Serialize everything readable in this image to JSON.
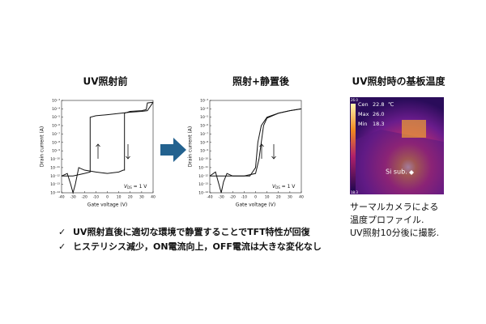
{
  "chart_data": [
    {
      "type": "line",
      "title": "UV照射前",
      "x_label": "Gate voltage (V)",
      "y_label": "Drain current (A)",
      "annotation": {
        "symbol": "V",
        "subscript": "DS",
        "text": " = 1 V"
      },
      "log_y": true,
      "color": "#111111",
      "xlim": [
        -40,
        40
      ],
      "xticks": [
        -40,
        -30,
        -20,
        -10,
        0,
        10,
        20,
        30,
        40
      ],
      "ylim": [
        1e-14,
        0.001
      ],
      "yticks": [
        {
          "value": 1e-14,
          "label": "10⁻¹⁴"
        },
        {
          "value": 1e-13,
          "label": "10⁻¹³"
        },
        {
          "value": 1e-12,
          "label": "10⁻¹²"
        },
        {
          "value": 1e-11,
          "label": "10⁻¹¹"
        },
        {
          "value": 1e-10,
          "label": "10⁻¹⁰"
        },
        {
          "value": 1e-09,
          "label": "10⁻⁹"
        },
        {
          "value": 1e-08,
          "label": "10⁻⁸"
        },
        {
          "value": 1e-07,
          "label": "10⁻⁷"
        },
        {
          "value": 1e-06,
          "label": "10⁻⁶"
        },
        {
          "value": 1e-05,
          "label": "10⁻⁵"
        },
        {
          "value": 0.0001,
          "label": "10⁻⁴"
        },
        {
          "value": 0.001,
          "label": "10⁻³"
        }
      ],
      "series": [
        {
          "x": [
            -40,
            -35,
            -32,
            -30,
            -28,
            -25,
            -20,
            -10,
            0,
            10,
            14,
            15,
            15,
            20,
            30,
            34,
            35,
            40
          ],
          "values": [
            1e-12,
            2e-12,
            1e-13,
            1e-14,
            1e-13,
            1e-11,
            5e-12,
            3e-12,
            2e-12,
            3e-12,
            5e-12,
            5e-12,
            3e-05,
            5e-05,
            6e-05,
            8e-05,
            0.0005,
            0.0006
          ]
        },
        {
          "x": [
            40,
            35,
            30,
            20,
            0,
            -10,
            -15,
            -15,
            -20,
            -30,
            -40
          ],
          "values": [
            0.0006,
            6e-05,
            5e-05,
            4e-05,
            2e-05,
            1.5e-05,
            1e-05,
            3e-12,
            2e-12,
            1e-12,
            1e-12
          ]
        }
      ]
    },
    {
      "type": "line",
      "title": "照射+静置後",
      "x_label": "Gate voltage (V)",
      "y_label": "Drain current (A)",
      "annotation": {
        "symbol": "V",
        "subscript": "DS",
        "text": " = 1 V"
      },
      "log_y": true,
      "color": "#111111",
      "xlim": [
        -40,
        40
      ],
      "xticks": [
        -40,
        -30,
        -20,
        -10,
        0,
        10,
        20,
        30,
        40
      ],
      "ylim": [
        1e-14,
        0.001
      ],
      "yticks": [
        {
          "value": 1e-14,
          "label": "10⁻¹⁴"
        },
        {
          "value": 1e-13,
          "label": "10⁻¹³"
        },
        {
          "value": 1e-12,
          "label": "10⁻¹²"
        },
        {
          "value": 1e-11,
          "label": "10⁻¹¹"
        },
        {
          "value": 1e-10,
          "label": "10⁻¹⁰"
        },
        {
          "value": 1e-09,
          "label": "10⁻⁹"
        },
        {
          "value": 1e-08,
          "label": "10⁻⁸"
        },
        {
          "value": 1e-07,
          "label": "10⁻⁷"
        },
        {
          "value": 1e-06,
          "label": "10⁻⁶"
        },
        {
          "value": 1e-05,
          "label": "10⁻⁵"
        },
        {
          "value": 0.0001,
          "label": "10⁻⁴"
        },
        {
          "value": 0.001,
          "label": "10⁻³"
        }
      ],
      "series": [
        {
          "x": [
            -40,
            -35,
            -32,
            -30,
            -28,
            -25,
            -20,
            -10,
            -5,
            0,
            2,
            5,
            10,
            20,
            30,
            40
          ],
          "values": [
            1e-12,
            3e-12,
            1e-13,
            1e-14,
            2e-13,
            2e-12,
            1e-12,
            1e-12,
            1e-12,
            1e-11,
            1e-08,
            1e-06,
            1e-05,
            3e-05,
            6e-05,
            0.0001
          ]
        },
        {
          "x": [
            40,
            30,
            20,
            10,
            7,
            5,
            3,
            0,
            -10,
            -20,
            -40
          ],
          "values": [
            0.0001,
            6e-05,
            3e-05,
            8e-06,
            1e-06,
            1e-08,
            1e-10,
            2e-12,
            1e-12,
            1e-12,
            1e-12
          ]
        }
      ]
    }
  ],
  "thermal_image": {
    "title": "UV照射時の基板温度",
    "readout": [
      [
        "Cen",
        "22.8",
        "℃"
      ],
      [
        "Max",
        "26.0"
      ],
      [
        "Min",
        "18.3"
      ]
    ],
    "scale_max": "26.0",
    "scale_min": "18.3",
    "label": "Si sub.",
    "caption": [
      "サーマルカメラによる",
      "温度プロファイル.",
      "UV照射10分後に撮影."
    ]
  },
  "bullets": [
    {
      "mark": "✓",
      "text": "UV照射直後に適切な環境で静置することでTFT特性が回復"
    },
    {
      "mark": "✓",
      "text": "ヒステリシス減少，ON電流向上，OFF電流は大きな変化なし"
    }
  ]
}
